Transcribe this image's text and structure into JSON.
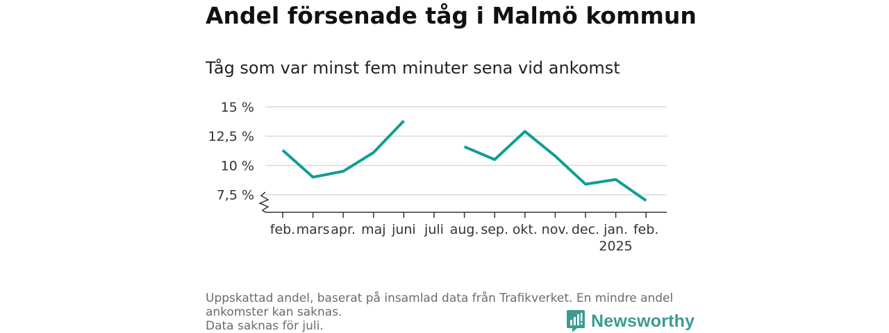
{
  "title": "Andel försenade tåg i Malmö kommun",
  "subtitle": "Tåg som var minst fem minuter sena vid ankomst",
  "chart_data": {
    "type": "line",
    "categories": [
      "feb.",
      "mars",
      "apr.",
      "maj",
      "juni",
      "juli",
      "aug.",
      "sep.",
      "okt.",
      "nov.",
      "dec.",
      "jan.",
      "feb."
    ],
    "category_sublabels": [
      "",
      "",
      "",
      "",
      "",
      "",
      "",
      "",
      "",
      "",
      "",
      "2025",
      ""
    ],
    "series": [
      {
        "values": [
          11.3,
          9.0,
          9.5,
          11.1,
          13.8,
          null,
          11.6,
          10.5,
          12.9,
          10.8,
          8.4,
          8.8,
          7.0
        ]
      }
    ],
    "ylim": [
      6.0,
      15.0
    ],
    "y_ticks": [
      7.5,
      10,
      12.5,
      15
    ],
    "y_tick_labels": [
      "7,5 %",
      "10 %",
      "12,5 %",
      "15 %"
    ],
    "axis_break": true,
    "grid": true,
    "line_color": "#0f9e92"
  },
  "footnote": {
    "lines": [
      "Uppskattad andel, baserat på insamlad data från Trafikverket. En mindre andel",
      "ankomster kan saknas.",
      "Data saknas för juli."
    ]
  },
  "brand": {
    "name": "Newsworthy",
    "icon": "newsworthy-logo-icon",
    "color": "#3a9b93"
  }
}
